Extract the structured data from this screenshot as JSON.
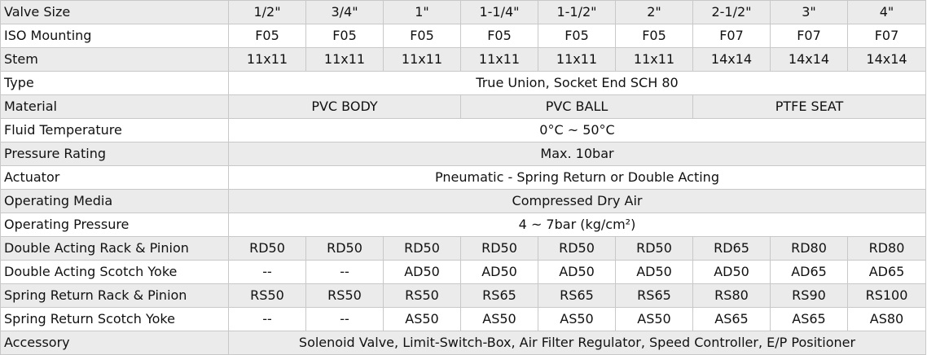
{
  "header": {
    "label": "Valve Size",
    "sizes": [
      "1/2\"",
      "3/4\"",
      "1\"",
      "1-1/4\"",
      "1-1/2\"",
      "2\"",
      "2-1/2\"",
      "3\"",
      "4\""
    ]
  },
  "iso_mounting": {
    "label": "ISO Mounting",
    "values": [
      "F05",
      "F05",
      "F05",
      "F05",
      "F05",
      "F05",
      "F07",
      "F07",
      "F07"
    ]
  },
  "stem": {
    "label": "Stem",
    "values": [
      "11x11",
      "11x11",
      "11x11",
      "11x11",
      "11x11",
      "11x11",
      "14x14",
      "14x14",
      "14x14"
    ]
  },
  "type": {
    "label": "Type",
    "value": "True Union, Socket End SCH 80"
  },
  "material": {
    "label": "Material",
    "body": "PVC BODY",
    "ball": "PVC BALL",
    "seat": "PTFE SEAT"
  },
  "fluid_temperature": {
    "label": "Fluid Temperature",
    "value": "0°C ~ 50°C"
  },
  "pressure_rating": {
    "label": "Pressure Rating",
    "value": "Max. 10bar"
  },
  "actuator": {
    "label": "Actuator",
    "value": "Pneumatic - Spring Return or Double Acting"
  },
  "operating_media": {
    "label": "Operating Media",
    "value": "Compressed Dry Air"
  },
  "operating_pressure": {
    "label": "Operating Pressure",
    "value": "4 ~ 7bar (kg/cm²)"
  },
  "double_acting_rack_pinion": {
    "label": "Double Acting Rack & Pinion",
    "values": [
      "RD50",
      "RD50",
      "RD50",
      "RD50",
      "RD50",
      "RD50",
      "RD65",
      "RD80",
      "RD80"
    ]
  },
  "double_acting_scotch_yoke": {
    "label": "Double Acting Scotch Yoke",
    "values": [
      "--",
      "--",
      "AD50",
      "AD50",
      "AD50",
      "AD50",
      "AD50",
      "AD65",
      "AD65"
    ]
  },
  "spring_return_rack_pinion": {
    "label": "Spring Return Rack & Pinion",
    "values": [
      "RS50",
      "RS50",
      "RS50",
      "RS65",
      "RS65",
      "RS65",
      "RS80",
      "RS90",
      "RS100"
    ]
  },
  "spring_return_scotch_yoke": {
    "label": "Spring Return Scotch Yoke",
    "values": [
      "--",
      "--",
      "AS50",
      "AS50",
      "AS50",
      "AS50",
      "AS65",
      "AS65",
      "AS80"
    ]
  },
  "accessory": {
    "label": "Accessory",
    "value": "Solenoid Valve, Limit-Switch-Box, Air Filter Regulator, Speed Controller, E/P Positioner"
  },
  "colors": {
    "stripe": "#ebebeb",
    "background": "#ffffff",
    "border": "#c8c8c8",
    "text": "#111111"
  }
}
